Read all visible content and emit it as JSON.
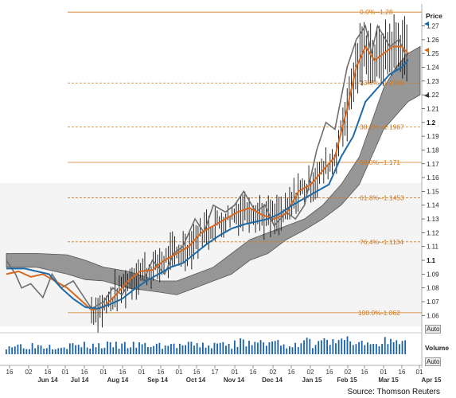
{
  "chart_data": {
    "type": "line",
    "title": "",
    "source": "Source: Thomson Reuters",
    "price_axis_label": "Price",
    "volume_label": "Volume",
    "auto_label": "Auto",
    "y_ticks": [
      1.06,
      1.07,
      1.08,
      1.09,
      1.1,
      1.11,
      1.12,
      1.13,
      1.14,
      1.15,
      1.16,
      1.17,
      1.18,
      1.19,
      1.2,
      1.21,
      1.22,
      1.23,
      1.24,
      1.25,
      1.26,
      1.27
    ],
    "y_tick_labels": [
      "1.06",
      "1.07",
      "1.08",
      "1.09",
      "1.1",
      "1.11",
      "1.12",
      "1.13",
      "1.14",
      "1.15",
      "1.16",
      "1.17",
      "1.18",
      "1.19",
      "1.2",
      "1.21",
      "1.22",
      "1.23",
      "1.24",
      "1.25",
      "1.26",
      "1.27"
    ],
    "y_bold_ticks": [
      1.1,
      1.2
    ],
    "ylim": [
      1.055,
      1.283
    ],
    "x_day_ticks": [
      "16",
      "02",
      "16",
      "01",
      "16",
      "01",
      "16",
      "01",
      "16",
      "01",
      "16",
      "17",
      "01",
      "16",
      "02",
      "16",
      "02",
      "16",
      "02",
      "16",
      "01",
      "16",
      "01"
    ],
    "x_month_labels": [
      "Jun 14",
      "Jul 14",
      "Aug 14",
      "Sep 14",
      "Oct 14",
      "Nov 14",
      "Dec 14",
      "Jan 15",
      "Feb 15",
      "Mar 15",
      "Apr 15"
    ],
    "fibonacci": [
      {
        "label": "0.0%--1.28",
        "level": 1.28
      },
      {
        "label": "23.6%--1.2286",
        "level": 1.2286
      },
      {
        "label": "38.2%--1.1967",
        "level": 1.1967
      },
      {
        "label": "50.0%--1.171",
        "level": 1.171
      },
      {
        "label": "61.8%--1.1453",
        "level": 1.1453
      },
      {
        "label": "76.4%--1.1134",
        "level": 1.1134
      },
      {
        "label": "100.0%-1.062",
        "level": 1.062
      }
    ],
    "series": [
      {
        "color": "#6e6e6e",
        "points": [
          [
            0,
            1.1
          ],
          [
            3,
            1.09
          ],
          [
            5,
            1.08
          ],
          [
            8,
            1.083
          ],
          [
            12,
            1.073
          ],
          [
            15,
            1.09
          ],
          [
            18,
            1.08
          ],
          [
            22,
            1.085
          ],
          [
            25,
            1.075
          ],
          [
            28,
            1.065
          ],
          [
            32,
            1.07
          ],
          [
            35,
            1.08
          ],
          [
            38,
            1.075
          ],
          [
            42,
            1.09
          ],
          [
            45,
            1.085
          ],
          [
            48,
            1.1
          ],
          [
            52,
            1.09
          ],
          [
            55,
            1.105
          ],
          [
            58,
            1.11
          ],
          [
            62,
            1.13
          ],
          [
            65,
            1.12
          ],
          [
            68,
            1.14
          ],
          [
            72,
            1.135
          ],
          [
            75,
            1.14
          ],
          [
            78,
            1.15
          ],
          [
            82,
            1.135
          ],
          [
            85,
            1.14
          ],
          [
            88,
            1.125
          ],
          [
            92,
            1.135
          ],
          [
            95,
            1.13
          ],
          [
            98,
            1.14
          ],
          [
            102,
            1.18
          ],
          [
            105,
            1.2
          ],
          [
            108,
            1.195
          ],
          [
            112,
            1.24
          ],
          [
            115,
            1.26
          ],
          [
            118,
            1.27
          ],
          [
            120,
            1.25
          ],
          [
            122,
            1.27
          ],
          [
            126,
            1.255
          ],
          [
            129,
            1.26
          ],
          [
            132,
            1.245
          ]
        ]
      },
      {
        "color": "#d8681f",
        "points": [
          [
            0,
            1.09
          ],
          [
            4,
            1.092
          ],
          [
            8,
            1.088
          ],
          [
            12,
            1.09
          ],
          [
            16,
            1.085
          ],
          [
            20,
            1.08
          ],
          [
            24,
            1.072
          ],
          [
            28,
            1.064
          ],
          [
            32,
            1.066
          ],
          [
            36,
            1.075
          ],
          [
            40,
            1.085
          ],
          [
            44,
            1.092
          ],
          [
            48,
            1.093
          ],
          [
            52,
            1.1
          ],
          [
            56,
            1.105
          ],
          [
            60,
            1.11
          ],
          [
            64,
            1.12
          ],
          [
            68,
            1.125
          ],
          [
            72,
            1.13
          ],
          [
            76,
            1.135
          ],
          [
            80,
            1.138
          ],
          [
            84,
            1.133
          ],
          [
            88,
            1.13
          ],
          [
            92,
            1.134
          ],
          [
            96,
            1.15
          ],
          [
            100,
            1.155
          ],
          [
            104,
            1.165
          ],
          [
            108,
            1.175
          ],
          [
            112,
            1.21
          ],
          [
            115,
            1.24
          ],
          [
            118,
            1.255
          ],
          [
            121,
            1.245
          ],
          [
            124,
            1.25
          ],
          [
            127,
            1.255
          ],
          [
            130,
            1.255
          ],
          [
            132,
            1.25
          ]
        ]
      },
      {
        "color": "#1f6aa6",
        "points": [
          [
            0,
            1.094
          ],
          [
            6,
            1.094
          ],
          [
            10,
            1.092
          ],
          [
            14,
            1.09
          ],
          [
            18,
            1.08
          ],
          [
            22,
            1.072
          ],
          [
            26,
            1.066
          ],
          [
            30,
            1.065
          ],
          [
            34,
            1.068
          ],
          [
            38,
            1.072
          ],
          [
            42,
            1.079
          ],
          [
            46,
            1.085
          ],
          [
            50,
            1.09
          ],
          [
            54,
            1.095
          ],
          [
            58,
            1.098
          ],
          [
            62,
            1.105
          ],
          [
            66,
            1.112
          ],
          [
            70,
            1.118
          ],
          [
            74,
            1.123
          ],
          [
            78,
            1.126
          ],
          [
            82,
            1.128
          ],
          [
            86,
            1.13
          ],
          [
            90,
            1.134
          ],
          [
            94,
            1.14
          ],
          [
            98,
            1.145
          ],
          [
            102,
            1.15
          ],
          [
            106,
            1.155
          ],
          [
            110,
            1.175
          ],
          [
            114,
            1.19
          ],
          [
            118,
            1.215
          ],
          [
            122,
            1.225
          ],
          [
            126,
            1.235
          ],
          [
            130,
            1.24
          ],
          [
            132,
            1.245
          ]
        ]
      }
    ],
    "cloud": {
      "color": "#8c8c8c",
      "upper": [
        [
          0,
          1.105
        ],
        [
          10,
          1.105
        ],
        [
          20,
          1.104
        ],
        [
          26,
          1.1
        ],
        [
          32,
          1.095
        ],
        [
          40,
          1.092
        ],
        [
          50,
          1.085
        ],
        [
          56,
          1.085
        ],
        [
          62,
          1.09
        ],
        [
          68,
          1.095
        ],
        [
          74,
          1.105
        ],
        [
          80,
          1.115
        ],
        [
          86,
          1.12
        ],
        [
          92,
          1.125
        ],
        [
          98,
          1.13
        ],
        [
          104,
          1.14
        ],
        [
          110,
          1.155
        ],
        [
          116,
          1.175
        ],
        [
          120,
          1.2
        ],
        [
          124,
          1.225
        ],
        [
          128,
          1.24
        ],
        [
          132,
          1.25
        ],
        [
          136,
          1.255
        ]
      ],
      "lower": [
        [
          0,
          1.095
        ],
        [
          10,
          1.095
        ],
        [
          20,
          1.09
        ],
        [
          26,
          1.086
        ],
        [
          32,
          1.085
        ],
        [
          40,
          1.08
        ],
        [
          50,
          1.077
        ],
        [
          56,
          1.075
        ],
        [
          62,
          1.08
        ],
        [
          68,
          1.085
        ],
        [
          74,
          1.09
        ],
        [
          80,
          1.1
        ],
        [
          86,
          1.105
        ],
        [
          92,
          1.115
        ],
        [
          98,
          1.122
        ],
        [
          104,
          1.13
        ],
        [
          110,
          1.14
        ],
        [
          116,
          1.155
        ],
        [
          120,
          1.175
        ],
        [
          124,
          1.195
        ],
        [
          128,
          1.205
        ],
        [
          132,
          1.215
        ],
        [
          136,
          1.22
        ]
      ]
    },
    "candle_range": [
      28,
      132
    ],
    "volume_color": "#1a62a8"
  }
}
